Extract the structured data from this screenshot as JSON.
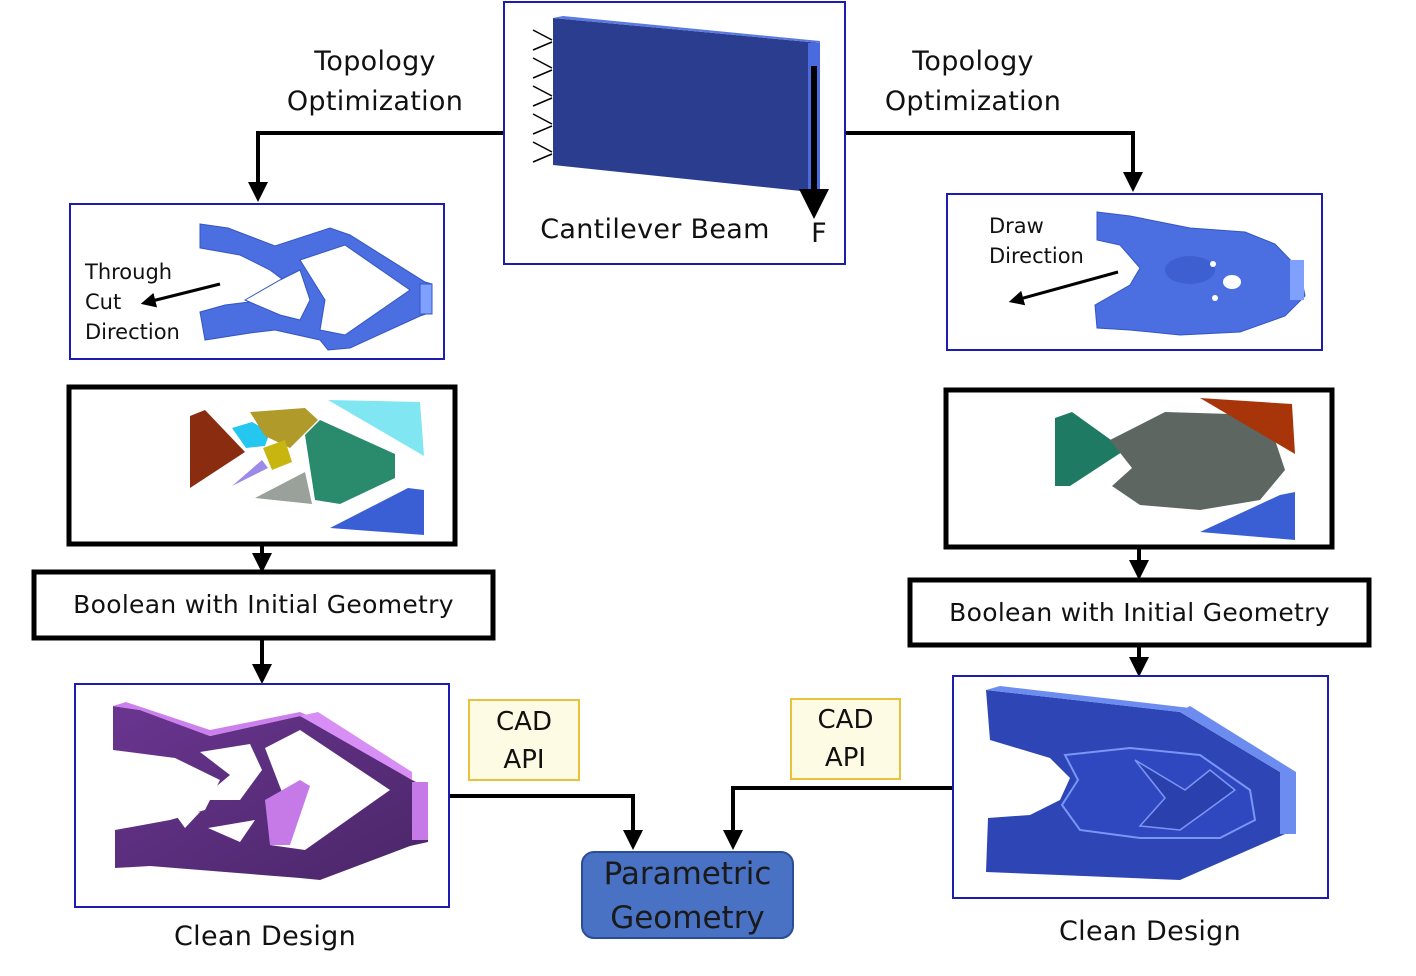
{
  "top": {
    "beam_label": "Cantilever Beam",
    "force_label": "F"
  },
  "left": {
    "topo_label_line1": "Topology",
    "topo_label_line2": "Optimization",
    "direction_line1": "Through",
    "direction_line2": "Cut",
    "direction_line3": "Direction",
    "boolean_label": "Boolean with Initial Geometry",
    "clean_label": "Clean Design",
    "cad_line1": "CAD",
    "cad_line2": "API"
  },
  "right": {
    "topo_label_line1": "Topology",
    "topo_label_line2": "Optimization",
    "direction_line1": "Draw",
    "direction_line2": "Direction",
    "boolean_label": "Boolean with Initial Geometry",
    "clean_label": "Clean Design",
    "cad_line1": "CAD",
    "cad_line2": "API"
  },
  "center": {
    "param_line1": "Parametric",
    "param_line2": "Geometry"
  },
  "colors": {
    "frame_blue": "#1c1cb0",
    "beam_blue": "#2a3d8f",
    "part_blue": "#4a6fe0",
    "clean_purple": "#7a3fa0",
    "clean_blue": "#2d45b5",
    "cad_fill": "#fdfbe3",
    "cad_border": "#e8c23a",
    "param_fill": "#4a72c4"
  }
}
